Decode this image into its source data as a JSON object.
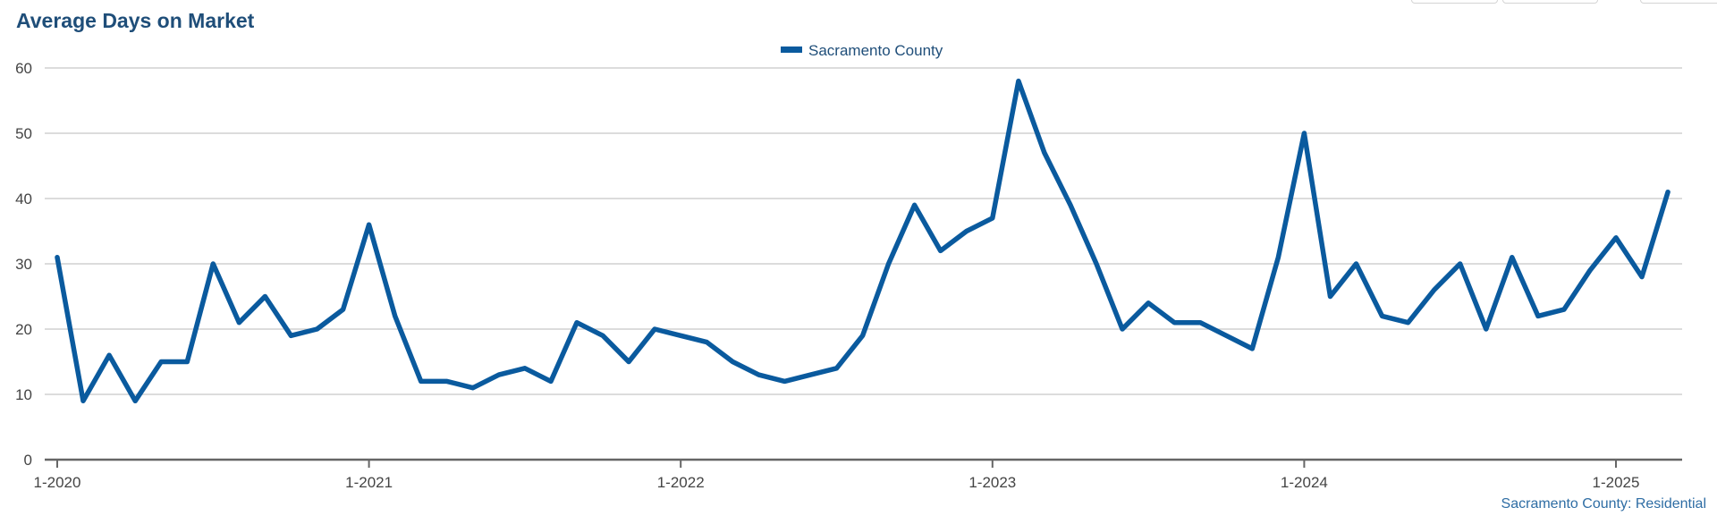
{
  "chart_data": {
    "type": "line",
    "title": "Average Days on Market",
    "x": [
      "1-2020",
      "2-2020",
      "3-2020",
      "4-2020",
      "5-2020",
      "6-2020",
      "7-2020",
      "8-2020",
      "9-2020",
      "10-2020",
      "11-2020",
      "12-2020",
      "1-2021",
      "2-2021",
      "3-2021",
      "4-2021",
      "5-2021",
      "6-2021",
      "7-2021",
      "8-2021",
      "9-2021",
      "10-2021",
      "11-2021",
      "12-2021",
      "1-2022",
      "2-2022",
      "3-2022",
      "4-2022",
      "5-2022",
      "6-2022",
      "7-2022",
      "8-2022",
      "9-2022",
      "10-2022",
      "11-2022",
      "12-2022",
      "1-2023",
      "2-2023",
      "3-2023",
      "4-2023",
      "5-2023",
      "6-2023",
      "7-2023",
      "8-2023",
      "9-2023",
      "10-2023",
      "11-2023",
      "12-2023",
      "1-2024",
      "2-2024",
      "3-2024",
      "4-2024",
      "5-2024",
      "6-2024",
      "7-2024",
      "8-2024",
      "9-2024",
      "10-2024",
      "11-2024",
      "12-2024",
      "1-2025",
      "2-2025",
      "3-2025"
    ],
    "x_tick_labels": [
      "1-2020",
      "1-2021",
      "1-2022",
      "1-2023",
      "1-2024",
      "1-2025"
    ],
    "series": [
      {
        "name": "Sacramento County",
        "values": [
          31,
          9,
          16,
          9,
          15,
          15,
          30,
          21,
          25,
          19,
          20,
          23,
          36,
          22,
          12,
          12,
          11,
          13,
          14,
          12,
          21,
          19,
          15,
          20,
          19,
          18,
          15,
          13,
          12,
          13,
          14,
          19,
          30,
          39,
          32,
          35,
          37,
          58,
          47,
          39,
          30,
          20,
          24,
          21,
          21,
          19,
          17,
          31,
          50,
          25,
          30,
          22,
          21,
          26,
          30,
          20,
          31,
          22,
          23,
          29,
          34,
          28,
          41
        ]
      }
    ],
    "ylim": [
      0,
      60
    ],
    "yticks": [
      0,
      10,
      20,
      30,
      40,
      50,
      60
    ],
    "grid": true,
    "legend_position": "top-center",
    "colors": {
      "line": "#0a5a9e",
      "grid": "#c8c8c8",
      "axis": "#666666",
      "title": "#1f4e79"
    }
  },
  "footer": {
    "source": "Sacramento County: Residential"
  }
}
